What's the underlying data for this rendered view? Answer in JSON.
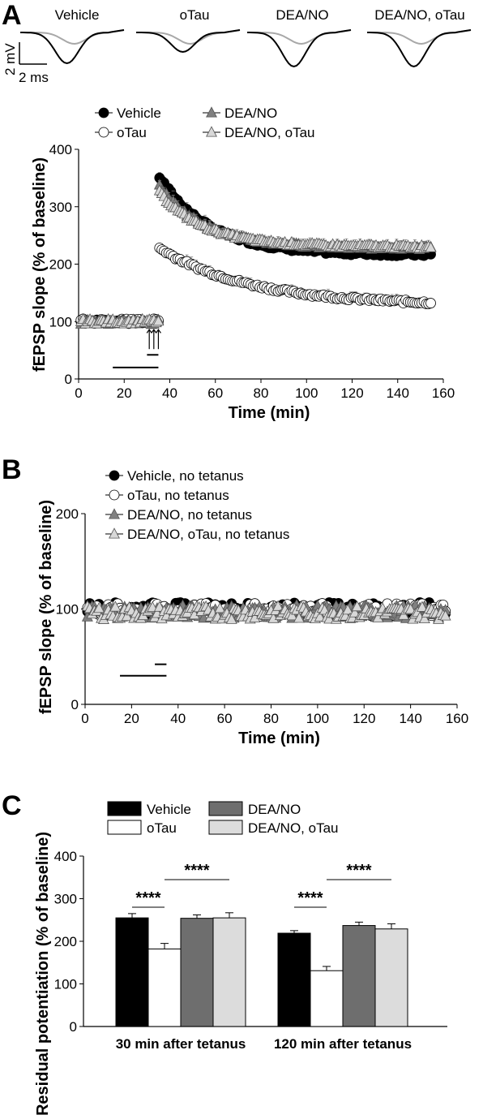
{
  "panels": {
    "A": "A",
    "B": "B",
    "C": "C"
  },
  "traces": {
    "labels": [
      "Vehicle",
      "oTau",
      "DEA/NO",
      "DEA/NO, oTau"
    ],
    "scale_y": "2 mV",
    "scale_x": "2 ms",
    "colors": {
      "pre": "#a8a8a8",
      "post": "#000000"
    }
  },
  "chart_data": [
    {
      "id": "A",
      "type": "scatter",
      "title": "",
      "xlabel": "Time (min)",
      "ylabel": "fEPSP slope (% of baseline)",
      "xlim": [
        0,
        160
      ],
      "ylim": [
        0,
        400
      ],
      "xticks": [
        "0",
        "20",
        "40",
        "60",
        "80",
        "100",
        "120",
        "140",
        "160"
      ],
      "yticks": [
        "0",
        "100",
        "200",
        "300",
        "400"
      ],
      "grid": false,
      "legend": "top",
      "legend_entries": [
        "Vehicle",
        "oTau",
        "DEA/NO",
        "DEA/NO, oTau"
      ],
      "tetanus_arrows_min": [
        31,
        33,
        35
      ],
      "bars": [
        {
          "from": 15,
          "to": 35,
          "y": 20
        },
        {
          "from": 30,
          "to": 35,
          "y": 42
        }
      ],
      "series": [
        {
          "name": "Vehicle",
          "marker": "circle",
          "fill": "#000000",
          "baseline": 100,
          "peak": 352,
          "plateau": 216,
          "tau": 22
        },
        {
          "name": "oTau",
          "marker": "circle",
          "fill": "#ffffff",
          "baseline": 101,
          "peak": 228,
          "plateau": 128,
          "tau": 40
        },
        {
          "name": "DEA/NO",
          "marker": "triangle",
          "fill": "#808080",
          "baseline": 99,
          "peak": 335,
          "plateau": 228,
          "tau": 20
        },
        {
          "name": "DEA/NO, oTau",
          "marker": "triangle",
          "fill": "#d8d8d8",
          "baseline": 100,
          "peak": 325,
          "plateau": 230,
          "tau": 20
        }
      ]
    },
    {
      "id": "B",
      "type": "scatter",
      "title": "",
      "xlabel": "Time (min)",
      "ylabel": "fEPSP slope (% of baseline)",
      "xlim": [
        0,
        160
      ],
      "ylim": [
        0,
        200
      ],
      "xticks": [
        "0",
        "20",
        "40",
        "60",
        "80",
        "100",
        "120",
        "140",
        "160"
      ],
      "yticks": [
        "0",
        "100",
        "200"
      ],
      "grid": false,
      "legend": "top",
      "legend_entries": [
        "Vehicle, no tetanus",
        "oTau, no tetanus",
        "DEA/NO, no tetanus",
        "DEA/NO, oTau, no tetanus"
      ],
      "bars": [
        {
          "from": 15,
          "to": 35,
          "y": 30
        },
        {
          "from": 30,
          "to": 35,
          "y": 42
        }
      ],
      "series": [
        {
          "name": "Vehicle, no tetanus",
          "marker": "circle",
          "fill": "#000000",
          "mean": 100
        },
        {
          "name": "oTau, no tetanus",
          "marker": "circle",
          "fill": "#ffffff",
          "mean": 99
        },
        {
          "name": "DEA/NO, no tetanus",
          "marker": "triangle",
          "fill": "#808080",
          "mean": 97
        },
        {
          "name": "DEA/NO, oTau, no tetanus",
          "marker": "triangle",
          "fill": "#d8d8d8",
          "mean": 96
        }
      ]
    },
    {
      "id": "C",
      "type": "bar",
      "title": "",
      "xlabel": "",
      "ylabel": "Residual potentiation (% of baseline)",
      "ylim": [
        0,
        400
      ],
      "yticks": [
        "0",
        "100",
        "200",
        "300",
        "400"
      ],
      "categories": [
        "30 min after tetanus",
        "120 min after tetanus"
      ],
      "legend": "top",
      "series": [
        {
          "name": "Vehicle",
          "color": "#000000",
          "values": [
            255,
            219
          ],
          "errors": [
            10,
            6
          ]
        },
        {
          "name": "oTau",
          "color": "#ffffff",
          "values": [
            182,
            131
          ],
          "errors": [
            13,
            10
          ]
        },
        {
          "name": "DEA/NO",
          "color": "#6e6e6e",
          "values": [
            254,
            237
          ],
          "errors": [
            8,
            8
          ]
        },
        {
          "name": "DEA/NO, oTau",
          "color": "#dcdcdc",
          "values": [
            255,
            229
          ],
          "errors": [
            12,
            12
          ]
        }
      ],
      "significance": [
        {
          "category": 0,
          "from": 0,
          "to": 1,
          "label": "****"
        },
        {
          "category": 0,
          "from": 1,
          "to": 3,
          "label": "****"
        },
        {
          "category": 1,
          "from": 0,
          "to": 1,
          "label": "****"
        },
        {
          "category": 1,
          "from": 1,
          "to": 3,
          "label": "****"
        }
      ]
    }
  ]
}
